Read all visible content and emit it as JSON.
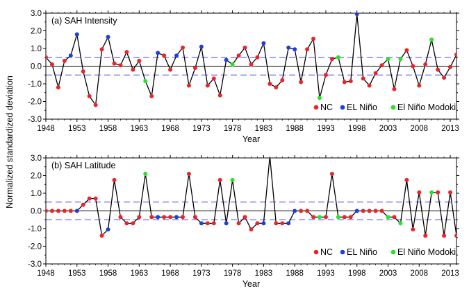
{
  "figure": {
    "ylabel": "Normalized standardized deviation",
    "xlabel": "Year"
  },
  "legend": {
    "entries": [
      {
        "key": "NC",
        "label": "NC",
        "color": "#e8262a"
      },
      {
        "key": "EN",
        "label": "EL Niño",
        "color": "#1f3fd8"
      },
      {
        "key": "ENM",
        "label": "El Niño Modoki",
        "color": "#27e227"
      }
    ]
  },
  "chart_data": [
    {
      "type": "line",
      "title": "(a)  SAH Intensity",
      "xlabel": "Year",
      "ylabel": "Normalized standardized deviation",
      "xlim": [
        1948,
        2014
      ],
      "ylim": [
        -3.0,
        3.0
      ],
      "xticks": [
        1948,
        1953,
        1958,
        1963,
        1968,
        1973,
        1978,
        1983,
        1988,
        1993,
        1998,
        2003,
        2008,
        2013
      ],
      "yticks": [
        -3.0,
        -2.0,
        -1.0,
        0.0,
        1.0,
        2.0,
        3.0
      ],
      "ytick_labels": [
        "-3.0",
        "-2.0",
        "-1.0",
        "0.0",
        "1.0",
        "2.0",
        "3.0"
      ],
      "reference_lines": [
        0.0,
        0.5,
        -0.5
      ],
      "legend_position": "bottom-right",
      "x": [
        1948,
        1949,
        1950,
        1951,
        1952,
        1953,
        1954,
        1955,
        1956,
        1957,
        1958,
        1959,
        1960,
        1961,
        1962,
        1963,
        1964,
        1965,
        1966,
        1967,
        1968,
        1969,
        1970,
        1971,
        1972,
        1973,
        1974,
        1975,
        1976,
        1977,
        1978,
        1979,
        1980,
        1981,
        1982,
        1983,
        1984,
        1985,
        1986,
        1987,
        1988,
        1989,
        1990,
        1991,
        1992,
        1993,
        1994,
        1995,
        1996,
        1997,
        1998,
        1999,
        2000,
        2001,
        2002,
        2003,
        2004,
        2005,
        2006,
        2007,
        2008,
        2009,
        2010,
        2011,
        2012,
        2013,
        2014
      ],
      "y": [
        0.5,
        0.1,
        -1.2,
        0.3,
        0.6,
        1.8,
        -0.3,
        -1.7,
        -2.2,
        0.95,
        1.65,
        0.15,
        0.05,
        0.8,
        -0.2,
        0.3,
        -0.85,
        -1.7,
        0.75,
        0.6,
        -0.2,
        0.6,
        1.05,
        -1.1,
        -0.1,
        1.1,
        -1.1,
        -0.7,
        -1.65,
        0.35,
        0.1,
        0.6,
        1.05,
        0.1,
        0.5,
        1.3,
        -1.0,
        -1.2,
        -0.8,
        1.05,
        0.95,
        -0.9,
        0.95,
        1.55,
        -1.8,
        -0.5,
        0.4,
        0.5,
        -0.9,
        -0.85,
        2.95,
        -0.7,
        -1.1,
        -0.4,
        0.05,
        0.4,
        -1.3,
        0.4,
        0.9,
        0.0,
        -1.1,
        0.1,
        1.5,
        -0.2,
        -0.65,
        -0.05,
        0.65
      ],
      "category": [
        "NC",
        "NC",
        "NC",
        "NC",
        "EN",
        "EN",
        "NC",
        "NC",
        "NC",
        "NC",
        "EN",
        "NC",
        "NC",
        "NC",
        "NC",
        "NC",
        "ENM",
        "NC",
        "EN",
        "NC",
        "NC",
        "EN",
        "NC",
        "NC",
        "NC",
        "EN",
        "NC",
        "NC",
        "NC",
        "EN",
        "ENM",
        "NC",
        "NC",
        "NC",
        "NC",
        "EN",
        "NC",
        "NC",
        "NC",
        "EN",
        "EN",
        "NC",
        "NC",
        "NC",
        "ENM",
        "NC",
        "NC",
        "ENM",
        "NC",
        "NC",
        "EN",
        "NC",
        "NC",
        "NC",
        "NC",
        "ENM",
        "NC",
        "ENM",
        "NC",
        "NC",
        "NC",
        "NC",
        "ENM",
        "NC",
        "NC",
        "NC",
        "NC"
      ]
    },
    {
      "type": "line",
      "title": "(b)  SAH Latitude",
      "xlabel": "Year",
      "ylabel": "Normalized standardized deviation",
      "xlim": [
        1948,
        2014
      ],
      "ylim": [
        -3.0,
        3.0
      ],
      "xticks": [
        1948,
        1953,
        1958,
        1963,
        1968,
        1973,
        1978,
        1983,
        1988,
        1993,
        1998,
        2003,
        2008,
        2013
      ],
      "yticks": [
        -3.0,
        -2.0,
        -1.0,
        0.0,
        1.0,
        2.0,
        3.0
      ],
      "ytick_labels": [
        "-3.0",
        "-2.0",
        "-1.0",
        "0.0",
        "1.0",
        "2.0",
        "3.0"
      ],
      "reference_lines": [
        0.0,
        0.5,
        -0.5
      ],
      "legend_position": "bottom-right",
      "x": [
        1948,
        1949,
        1950,
        1951,
        1952,
        1953,
        1954,
        1955,
        1956,
        1957,
        1958,
        1959,
        1960,
        1961,
        1962,
        1963,
        1964,
        1965,
        1966,
        1967,
        1968,
        1969,
        1970,
        1971,
        1972,
        1973,
        1974,
        1975,
        1976,
        1977,
        1978,
        1979,
        1980,
        1981,
        1982,
        1983,
        1984,
        1985,
        1986,
        1987,
        1988,
        1989,
        1990,
        1991,
        1992,
        1993,
        1994,
        1995,
        1996,
        1997,
        1998,
        1999,
        2000,
        2001,
        2002,
        2003,
        2004,
        2005,
        2006,
        2007,
        2008,
        2009,
        2010,
        2011,
        2012,
        2013,
        2014
      ],
      "y": [
        0.0,
        0.0,
        0.0,
        0.0,
        0.0,
        0.0,
        0.35,
        0.7,
        0.7,
        -1.4,
        -1.05,
        1.75,
        -0.35,
        -0.7,
        -0.7,
        -0.35,
        2.1,
        -0.35,
        -0.35,
        -0.35,
        -0.35,
        -0.35,
        -0.35,
        2.1,
        -0.35,
        -0.7,
        -0.7,
        -0.7,
        1.75,
        -0.7,
        1.75,
        -0.7,
        -0.35,
        -1.05,
        -0.7,
        -0.7,
        3.1,
        -0.7,
        -0.7,
        -0.7,
        0.0,
        0.0,
        0.0,
        -0.35,
        -0.35,
        -0.35,
        2.1,
        -0.35,
        -0.35,
        -0.35,
        0.0,
        0.0,
        0.0,
        0.0,
        0.0,
        -0.35,
        -0.35,
        -0.7,
        1.75,
        -1.05,
        1.05,
        -1.4,
        1.05,
        1.05,
        -1.4,
        1.05,
        -1.4
      ],
      "category": [
        "NC",
        "NC",
        "NC",
        "NC",
        "NC",
        "EN",
        "NC",
        "NC",
        "NC",
        "NC",
        "EN",
        "NC",
        "NC",
        "NC",
        "NC",
        "NC",
        "ENM",
        "NC",
        "EN",
        "NC",
        "NC",
        "EN",
        "NC",
        "NC",
        "NC",
        "EN",
        "NC",
        "NC",
        "NC",
        "EN",
        "ENM",
        "NC",
        "NC",
        "NC",
        "NC",
        "EN",
        "NC",
        "NC",
        "NC",
        "EN",
        "EN",
        "NC",
        "NC",
        "NC",
        "ENM",
        "NC",
        "NC",
        "ENM",
        "NC",
        "NC",
        "EN",
        "NC",
        "NC",
        "NC",
        "NC",
        "ENM",
        "NC",
        "ENM",
        "NC",
        "NC",
        "NC",
        "NC",
        "ENM",
        "NC",
        "NC",
        "NC",
        "NC"
      ]
    }
  ]
}
